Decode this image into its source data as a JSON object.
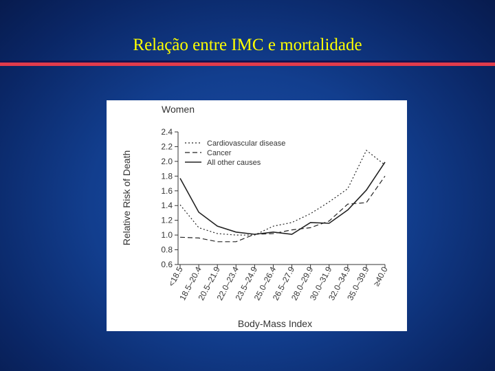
{
  "slide": {
    "title": "Relação entre IMC e mortalidade",
    "colors": {
      "title": "#ffff00",
      "accent_rule": "#e23b4b",
      "background": "#123e8e"
    }
  },
  "chart_data": {
    "type": "line",
    "title": "Women",
    "xlabel": "Body-Mass Index",
    "ylabel": "Relative Risk of Death",
    "categories": [
      "<18.5",
      "18.5–20.4",
      "20.5–21.9",
      "22.0–23.4",
      "23.5–24.9",
      "25.0–26.4",
      "26.5–27.9",
      "28.0–29.9",
      "30.0–31.9",
      "32.0–34.9",
      "35.0–39.9",
      "≥40.0"
    ],
    "ylim": [
      0.6,
      2.4
    ],
    "yticks": [
      "0.6",
      "0.8",
      "1.0",
      "1.2",
      "1.4",
      "1.6",
      "1.8",
      "2.0",
      "2.2",
      "2.4"
    ],
    "legend_position": "top-left",
    "grid": false,
    "series": [
      {
        "name": "Cardiovascular disease",
        "style": "dotted",
        "values": [
          1.41,
          1.1,
          1.02,
          1.0,
          1.0,
          1.12,
          1.17,
          1.29,
          1.45,
          1.63,
          2.15,
          1.95
        ]
      },
      {
        "name": "Cancer",
        "style": "dashed",
        "values": [
          0.97,
          0.96,
          0.91,
          0.91,
          1.01,
          1.02,
          1.07,
          1.1,
          1.19,
          1.42,
          1.44,
          1.8
        ]
      },
      {
        "name": "All other causes",
        "style": "solid",
        "values": [
          1.77,
          1.31,
          1.12,
          1.04,
          1.01,
          1.04,
          1.01,
          1.17,
          1.16,
          1.34,
          1.61,
          1.99
        ]
      }
    ]
  }
}
